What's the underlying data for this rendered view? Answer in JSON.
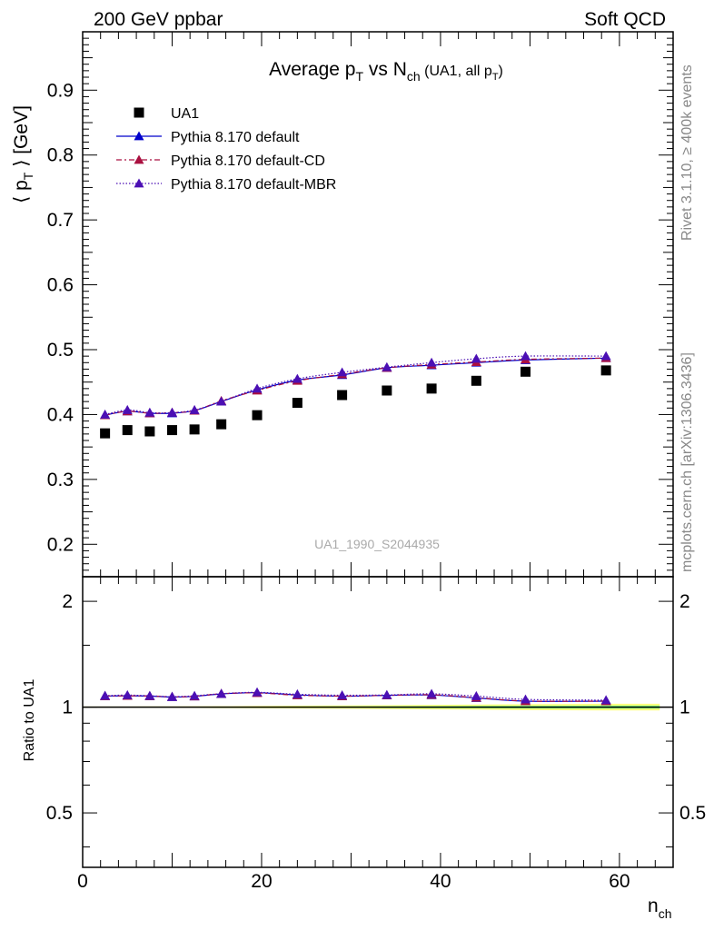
{
  "header": {
    "left": "200 GeV ppbar",
    "right": "Soft QCD"
  },
  "side": {
    "top": "Rivet 3.1.10, ≥ 400k events",
    "bottom": "mcplots.cern.ch [arXiv:1306.3436]"
  },
  "chart_data": {
    "type": "scatter",
    "title": {
      "prefix": "Average p",
      "sub1": "T",
      "mid": " vs N",
      "sub2": "ch",
      "suffix_open": " (UA1, all p",
      "sub3": "T",
      "suffix_close": ")"
    },
    "watermark": "UA1_1990_S2044935",
    "xlabel": {
      "main": "n",
      "sub": "ch"
    },
    "ylabel": {
      "main": "⟨ p",
      "sub": "T",
      "rest": " ⟩ [GeV]"
    },
    "ratio_ylabel": "Ratio to UA1",
    "xlim": [
      0,
      66
    ],
    "ylim": [
      0.15,
      0.99
    ],
    "ratio_ylim": [
      0.35,
      2.35
    ],
    "x_ticks": [
      0,
      20,
      40,
      60
    ],
    "x_tick_labels": [
      "0",
      "20",
      "40",
      "60"
    ],
    "y_ticks": [
      0.2,
      0.3,
      0.4,
      0.5,
      0.6,
      0.7,
      0.8,
      0.9
    ],
    "y_tick_labels": [
      "0.2",
      "0.3",
      "0.4",
      "0.5",
      "0.6",
      "0.7",
      "0.8",
      "0.9"
    ],
    "ratio_ticks": [
      0.5,
      1,
      2
    ],
    "ratio_tick_labels": [
      "0.5",
      "1",
      "2"
    ],
    "legend_position": "top-left",
    "x": [
      2.5,
      5,
      7.5,
      10,
      12.5,
      15.5,
      19.5,
      24,
      29,
      34,
      39,
      44,
      49.5,
      58.5
    ],
    "series": [
      {
        "name": "UA1",
        "marker": "square",
        "color": "#000000",
        "values": [
          0.371,
          0.376,
          0.374,
          0.376,
          0.377,
          0.385,
          0.399,
          0.418,
          0.43,
          0.437,
          0.44,
          0.452,
          0.466,
          0.468
        ],
        "ratio": [
          1,
          1,
          1,
          1,
          1,
          1,
          1,
          1,
          1,
          1,
          1,
          1,
          1,
          1
        ]
      },
      {
        "name": "Pythia 8.170 default",
        "marker": "triangle",
        "color": "#0000cc",
        "dash": "",
        "values": [
          0.399,
          0.405,
          0.402,
          0.402,
          0.406,
          0.42,
          0.438,
          0.453,
          0.461,
          0.472,
          0.476,
          0.48,
          0.484,
          0.487
        ],
        "ratio": [
          1.075,
          1.077,
          1.075,
          1.068,
          1.073,
          1.09,
          1.099,
          1.083,
          1.074,
          1.08,
          1.082,
          1.062,
          1.04,
          1.04
        ]
      },
      {
        "name": "Pythia 8.170 default-CD",
        "marker": "triangle",
        "color": "#aa1040",
        "dash": "6,3,2,3",
        "values": [
          0.399,
          0.405,
          0.402,
          0.403,
          0.406,
          0.421,
          0.437,
          0.452,
          0.462,
          0.472,
          0.477,
          0.481,
          0.485,
          0.487
        ],
        "ratio": [
          1.075,
          1.077,
          1.075,
          1.07,
          1.073,
          1.092,
          1.097,
          1.081,
          1.075,
          1.08,
          1.084,
          1.064,
          1.041,
          1.04
        ]
      },
      {
        "name": "Pythia 8.170 default-MBR",
        "marker": "triangle",
        "color": "#4b0fb4",
        "dash": "1.5,2",
        "values": [
          0.4,
          0.407,
          0.403,
          0.403,
          0.407,
          0.42,
          0.44,
          0.455,
          0.465,
          0.473,
          0.48,
          0.486,
          0.49,
          0.49
        ],
        "ratio": [
          1.078,
          1.082,
          1.077,
          1.071,
          1.077,
          1.092,
          1.102,
          1.088,
          1.081,
          1.083,
          1.091,
          1.075,
          1.052,
          1.047
        ]
      }
    ],
    "ratio_band": {
      "color_outer": "#ffff80",
      "color_inner": "#80ff80"
    }
  }
}
